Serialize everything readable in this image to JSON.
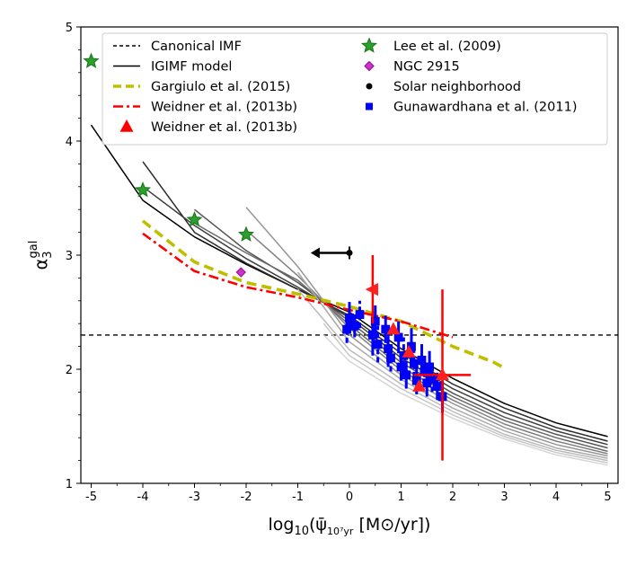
{
  "chart_data": {
    "type": "line",
    "title": "",
    "xlabel": "log10(ψ̄ 10⁷yr [M⊙/yr])",
    "xlabel_parts": {
      "prefix": "log",
      "sub1": "10",
      "mid": "(ψ̄",
      "sub2": "10⁷yr",
      "suffix": " [M⊙/yr])"
    },
    "ylabel": "α3 gal",
    "ylabel_parts": {
      "base": "α",
      "sub": "3",
      "sup": "gal"
    },
    "xlim": [
      -5.2,
      5.2
    ],
    "ylim": [
      1.0,
      5.0
    ],
    "xticks": [
      -5,
      -4,
      -3,
      -2,
      -1,
      0,
      1,
      2,
      3,
      4,
      5
    ],
    "xtick_labels": [
      "-5",
      "-4",
      "-3",
      "-2",
      "-1",
      "0",
      "1",
      "2",
      "3",
      "4",
      "5"
    ],
    "yticks": [
      1,
      2,
      3,
      4,
      5
    ],
    "ytick_labels": [
      "1",
      "2",
      "3",
      "4",
      "5"
    ],
    "legend_position": "top",
    "legend": [
      {
        "label": "Canonical IMF",
        "kind": "line",
        "color": "#000000",
        "dash": "dashed"
      },
      {
        "label": "IGIMF model",
        "kind": "line",
        "color": "#000000",
        "dash": "solid"
      },
      {
        "label": "Gargiulo et al. (2015)",
        "kind": "line",
        "color": "#bfbf00",
        "dash": "dashed-thick"
      },
      {
        "label": "Weidner et al. (2013b)",
        "kind": "line",
        "color": "#ff0000",
        "dash": "dashdot"
      },
      {
        "label": "Weidner et al. (2013b)",
        "kind": "marker",
        "marker": "triangle",
        "color": "#ff0000"
      },
      {
        "label": "Lee et al. (2009)",
        "kind": "marker",
        "marker": "star",
        "color": "#2ca02c"
      },
      {
        "label": "NGC 2915",
        "kind": "marker",
        "marker": "diamond",
        "color": "#cc33cc"
      },
      {
        "label": "Solar neighborhood",
        "kind": "marker",
        "marker": "circle",
        "color": "#000000"
      },
      {
        "label": "Gunawardhana et al. (2011)",
        "kind": "marker",
        "marker": "square",
        "color": "#0000ff"
      }
    ],
    "series": [
      {
        "name": "Canonical IMF",
        "color": "#000000",
        "style": "dashed",
        "x": [
          -5.2,
          5.2
        ],
        "y": [
          2.3,
          2.3
        ]
      },
      {
        "name": "IGIMF model (Fe/H=-5)",
        "color": "#000000",
        "style": "solid",
        "x": [
          -5,
          -4,
          -3,
          -2,
          -1,
          0,
          1,
          2,
          3,
          4,
          5
        ],
        "y": [
          4.14,
          3.48,
          3.16,
          2.92,
          2.7,
          2.5,
          2.18,
          1.92,
          1.7,
          1.53,
          1.41
        ]
      },
      {
        "name": "IGIMF model (Fe/H=-4)",
        "color": "#2a2a2a",
        "style": "solid",
        "x": [
          -4,
          -3,
          -2,
          -1,
          0,
          1,
          2,
          3,
          4,
          5
        ],
        "y": [
          3.82,
          3.2,
          2.93,
          2.7,
          2.47,
          2.14,
          1.87,
          1.66,
          1.49,
          1.37
        ]
      },
      {
        "name": "IGIMF model (Fe/H=-3)",
        "color": "#3d3d3d",
        "style": "solid",
        "x": [
          -4,
          -3,
          -2,
          -1,
          0,
          1,
          2,
          3,
          4,
          5
        ],
        "y": [
          3.6,
          3.26,
          2.97,
          2.72,
          2.45,
          2.1,
          1.83,
          1.62,
          1.46,
          1.34
        ]
      },
      {
        "name": "IGIMF model (Fe/H=-2)",
        "color": "#555555",
        "style": "solid",
        "x": [
          -3,
          -2,
          -1,
          0,
          1,
          2,
          3,
          4,
          5
        ],
        "y": [
          3.4,
          3.04,
          2.76,
          2.42,
          2.06,
          1.79,
          1.58,
          1.43,
          1.31
        ]
      },
      {
        "name": "IGIMF model (Fe/H=-1.5)",
        "color": "#6a6a6a",
        "style": "solid",
        "x": [
          -3,
          -2,
          -1,
          0,
          1,
          2,
          3,
          4,
          5
        ],
        "y": [
          3.28,
          3.02,
          2.78,
          2.39,
          2.02,
          1.76,
          1.55,
          1.4,
          1.28
        ]
      },
      {
        "name": "IGIMF model (Fe/H=-1)",
        "color": "#808080",
        "style": "solid",
        "x": [
          -2,
          -1,
          0,
          1,
          2,
          3,
          4,
          5
        ],
        "y": [
          3.22,
          2.82,
          2.36,
          1.99,
          1.73,
          1.52,
          1.37,
          1.26
        ]
      },
      {
        "name": "IGIMF model (Fe/H=-0.5)",
        "color": "#959595",
        "style": "solid",
        "x": [
          -2,
          -1,
          0,
          1,
          2,
          3,
          4,
          5
        ],
        "y": [
          3.42,
          2.9,
          2.3,
          1.95,
          1.7,
          1.49,
          1.34,
          1.24
        ]
      },
      {
        "name": "IGIMF model (Fe/H=0)",
        "color": "#aaaaaa",
        "style": "solid",
        "x": [
          -1,
          0,
          1,
          2,
          3,
          4,
          5
        ],
        "y": [
          2.85,
          2.24,
          1.91,
          1.66,
          1.46,
          1.31,
          1.22
        ]
      },
      {
        "name": "IGIMF model (Fe/H=0.5)",
        "color": "#bbbbbb",
        "style": "solid",
        "x": [
          -1,
          0,
          1,
          2,
          3,
          4,
          5
        ],
        "y": [
          2.7,
          2.17,
          1.87,
          1.63,
          1.43,
          1.29,
          1.2
        ]
      },
      {
        "name": "IGIMF model (Fe/H=1)",
        "color": "#c8c8c8",
        "style": "solid",
        "x": [
          -0.5,
          0,
          1,
          2,
          3,
          4,
          5
        ],
        "y": [
          2.4,
          2.12,
          1.83,
          1.6,
          1.41,
          1.27,
          1.18
        ]
      },
      {
        "name": "IGIMF model (Fe/H=1.5)",
        "color": "#d6d6d6",
        "style": "solid",
        "x": [
          -0.5,
          0,
          1,
          2,
          3,
          4,
          5
        ],
        "y": [
          2.3,
          2.07,
          1.79,
          1.57,
          1.39,
          1.25,
          1.16
        ]
      },
      {
        "name": "Gargiulo et al. (2015)",
        "color": "#bfbf00",
        "style": "dashed-thick",
        "x": [
          -4,
          -3,
          -2,
          -1,
          0,
          1,
          2,
          2.8,
          3
        ],
        "y": [
          3.3,
          2.94,
          2.76,
          2.66,
          2.55,
          2.42,
          2.2,
          2.06,
          2.01
        ]
      },
      {
        "name": "Weidner et al. (2013b)",
        "color": "#ff0000",
        "style": "dashdot",
        "x": [
          -4,
          -3,
          -2,
          -1,
          0,
          1,
          2
        ],
        "y": [
          3.19,
          2.86,
          2.72,
          2.63,
          2.52,
          2.42,
          2.28
        ]
      }
    ],
    "points": {
      "lee2009": {
        "name": "Lee et al. (2009)",
        "x": [
          -5,
          -4,
          -3,
          -2
        ],
        "y": [
          4.7,
          3.57,
          3.31,
          3.18
        ]
      },
      "ngc2915": {
        "name": "NGC 2915",
        "x": [
          -2.1
        ],
        "y": [
          2.85
        ]
      },
      "solar": {
        "name": "Solar neighborhood",
        "x": 0.0,
        "y": 3.02,
        "xlimit_to": -0.75
      },
      "weidner_points": {
        "name": "Weidner et al. (2013b)",
        "x": [
          0.45,
          0.85,
          1.15,
          1.35,
          1.8
        ],
        "y": [
          2.7,
          2.35,
          2.15,
          1.85,
          1.95
        ],
        "xerr": [
          0,
          0,
          0,
          0,
          0.55
        ],
        "yerr": [
          0.3,
          0,
          0,
          0,
          0.75
        ]
      },
      "gunawardhana": {
        "name": "Gunawardhana et al. (2011)",
        "x": [
          -0.05,
          0.0,
          0.1,
          0.2,
          0.45,
          0.5,
          0.55,
          0.7,
          0.75,
          0.8,
          0.95,
          1.0,
          1.05,
          1.1,
          1.2,
          1.25,
          1.3,
          1.4,
          1.45,
          1.5,
          1.55,
          1.6,
          1.7,
          1.8
        ],
        "y": [
          2.35,
          2.45,
          2.38,
          2.48,
          2.3,
          2.42,
          2.22,
          2.35,
          2.18,
          2.1,
          2.28,
          2.02,
          2.12,
          1.95,
          2.2,
          2.05,
          1.9,
          2.08,
          1.98,
          1.88,
          2.02,
          1.92,
          1.85,
          1.76
        ],
        "yerr": [
          0.12,
          0.14,
          0.1,
          0.12,
          0.18,
          0.14,
          0.16,
          0.12,
          0.16,
          0.12,
          0.14,
          0.12,
          0.16,
          0.12,
          0.16,
          0.12,
          0.12,
          0.14,
          0.12,
          0.12,
          0.14,
          0.12,
          0.12,
          0.14
        ]
      }
    }
  }
}
